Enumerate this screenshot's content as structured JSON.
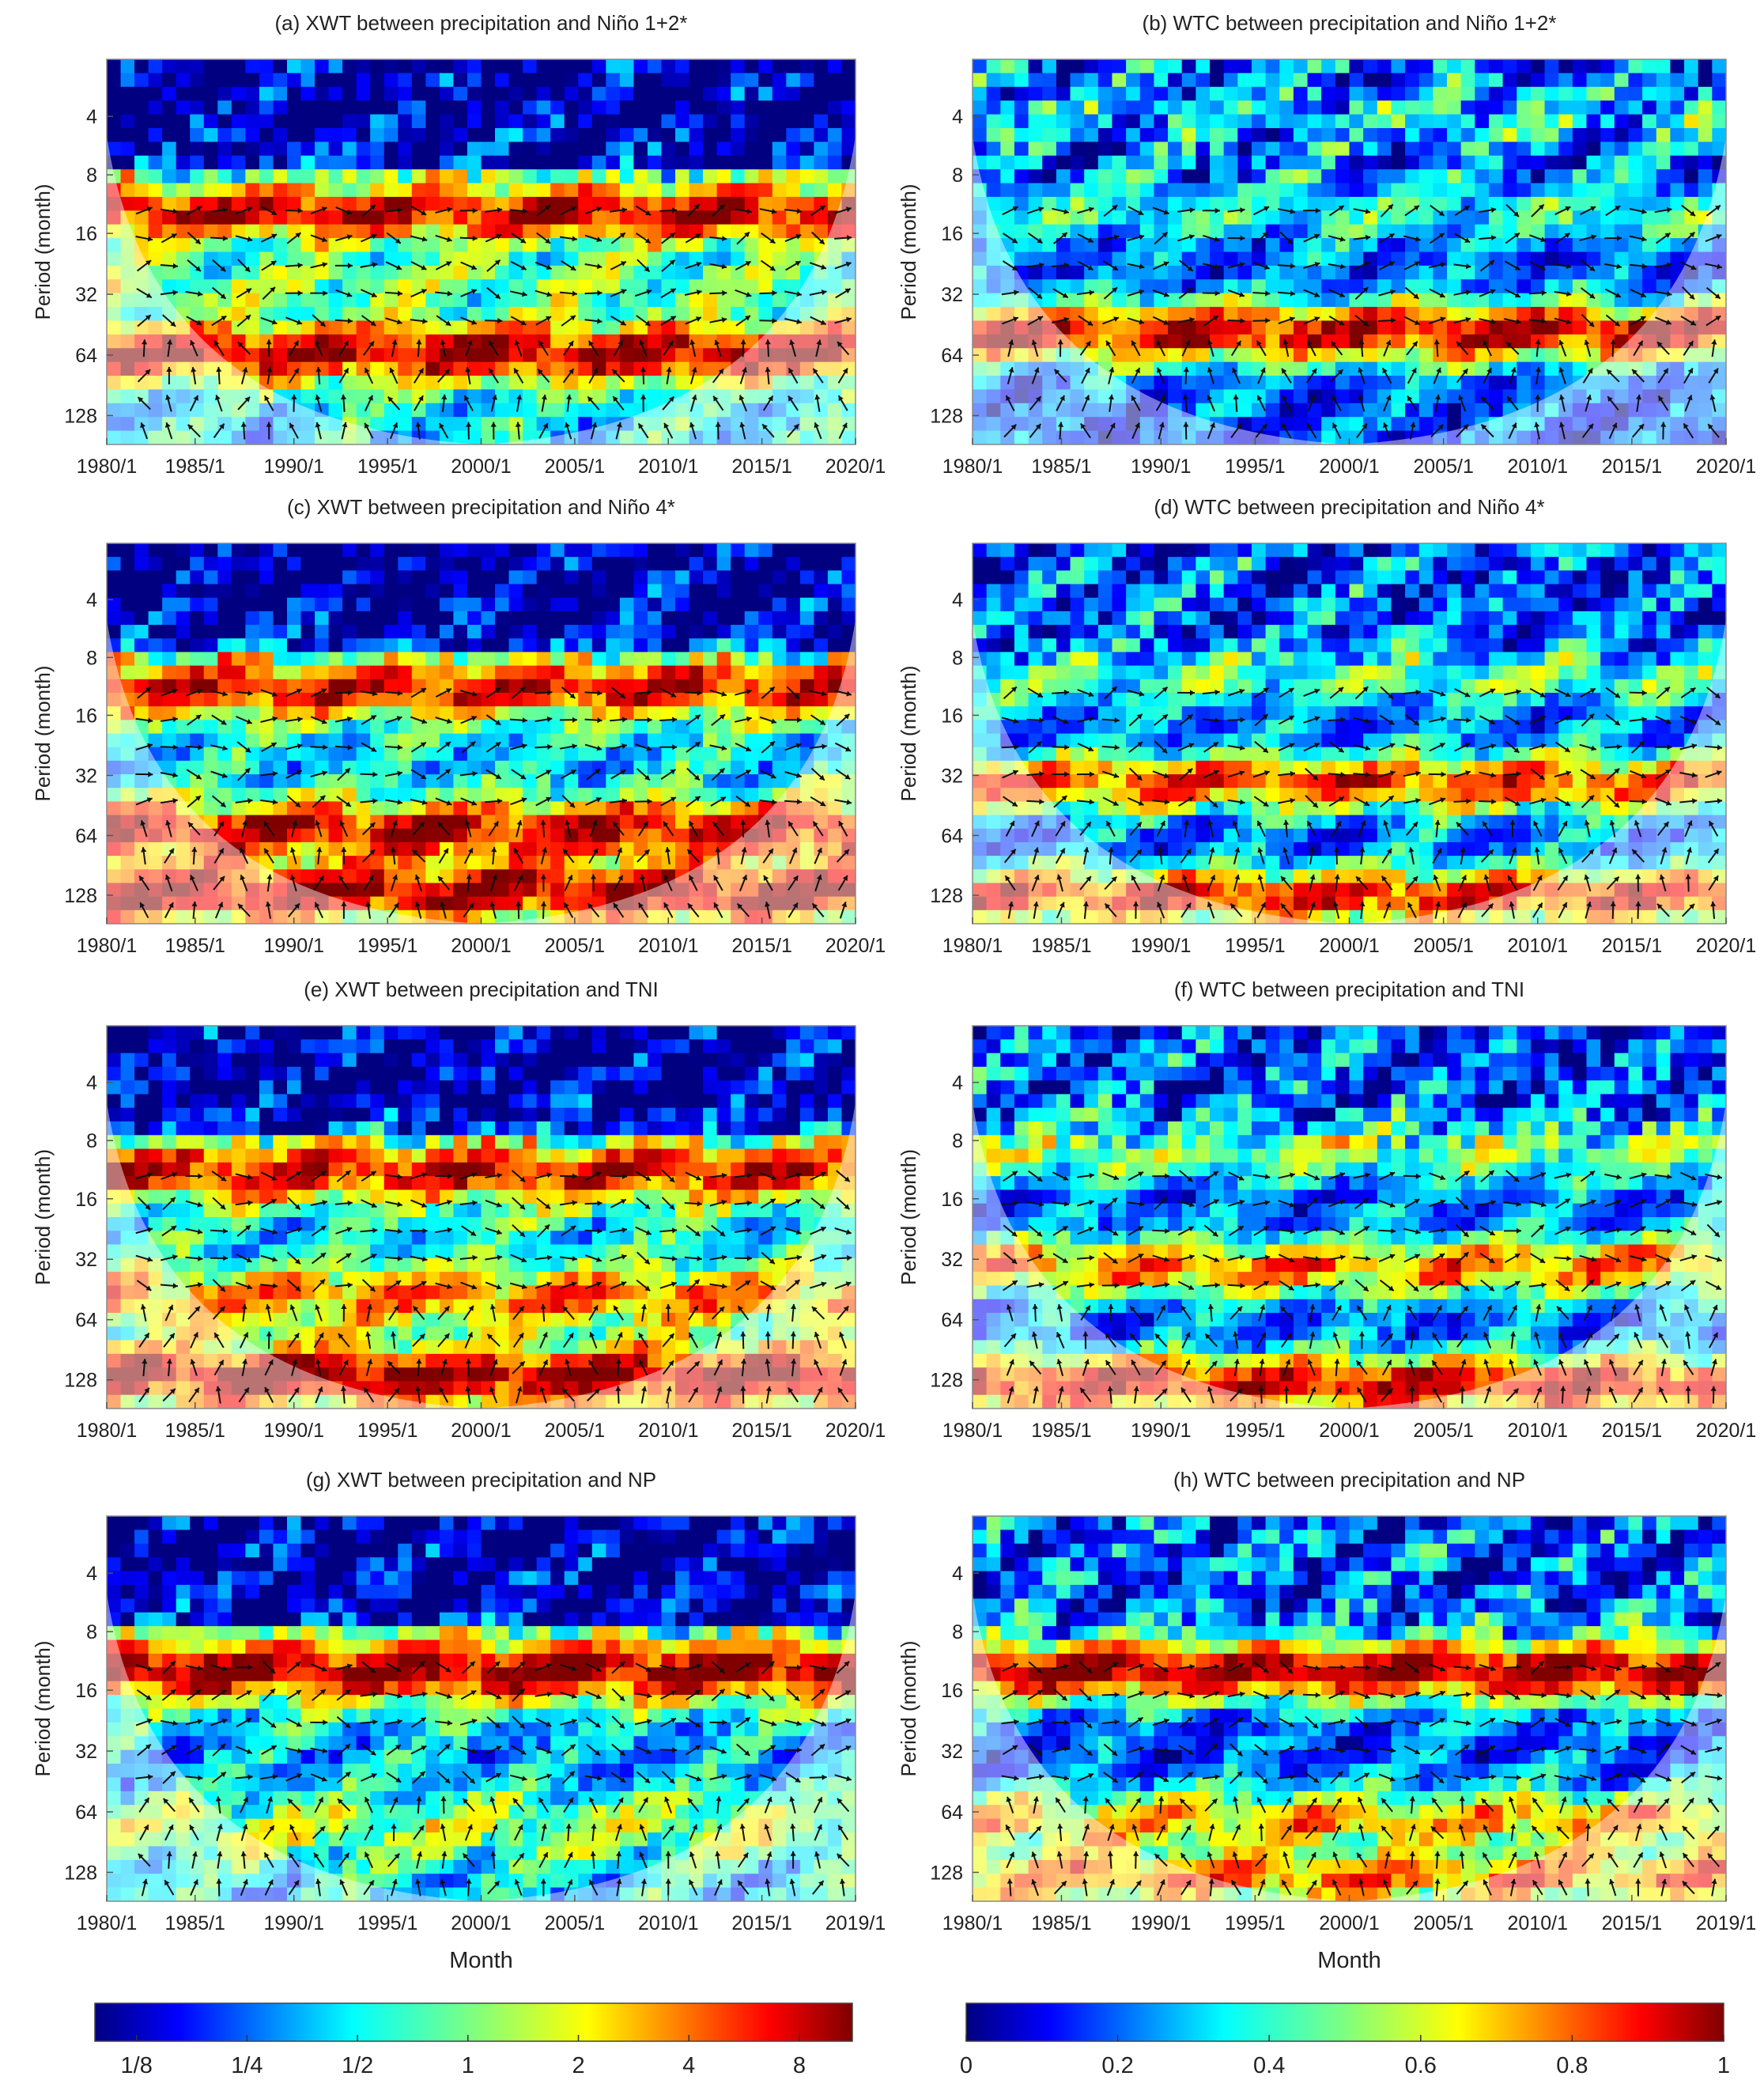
{
  "chart_data": {
    "type": "heatmap",
    "panels": [
      {
        "id": "a",
        "title": "(a) XWT between precipitation and Niño 1+2*",
        "ylabel": "Period (month)",
        "xlabel": "",
        "x_ticks": [
          "1980/1",
          "1985/1",
          "1990/1",
          "1995/1",
          "2000/1",
          "2005/1",
          "2010/1",
          "2015/1",
          "2020/1"
        ],
        "y_ticks": [
          "4",
          "8",
          "16",
          "32",
          "64",
          "128"
        ],
        "colorbar": "xwt",
        "bands": [
          {
            "period": 12,
            "value": 0.9
          },
          {
            "period": 56,
            "value": 0.95
          },
          {
            "period": 26,
            "value": 0.5
          }
        ]
      },
      {
        "id": "b",
        "title": "(b) WTC between precipitation and Niño 1+2*",
        "ylabel": "Period (month)",
        "xlabel": "",
        "x_ticks": [
          "1980/1",
          "1985/1",
          "1990/1",
          "1995/1",
          "2000/1",
          "2005/1",
          "2010/1",
          "2015/1",
          "2020/1"
        ],
        "y_ticks": [
          "4",
          "8",
          "16",
          "32",
          "64",
          "128"
        ],
        "colorbar": "wtc",
        "bands": [
          {
            "period": 12,
            "value": 0.4
          },
          {
            "period": 45,
            "value": 0.92
          },
          {
            "period": 4,
            "value": 0.35
          }
        ]
      },
      {
        "id": "c",
        "title": "(c) XWT between precipitation and Niño 4*",
        "ylabel": "Period (month)",
        "xlabel": "",
        "x_ticks": [
          "1980/1",
          "1985/1",
          "1990/1",
          "1995/1",
          "2000/1",
          "2005/1",
          "2010/1",
          "2015/1",
          "2020/1"
        ],
        "y_ticks": [
          "4",
          "8",
          "16",
          "32",
          "64",
          "128"
        ],
        "colorbar": "xwt",
        "bands": [
          {
            "period": 11,
            "value": 0.88
          },
          {
            "period": 55,
            "value": 0.92
          },
          {
            "period": 110,
            "value": 0.95
          }
        ]
      },
      {
        "id": "d",
        "title": "(d) WTC between precipitation and Niño 4*",
        "ylabel": "Period (month)",
        "xlabel": "",
        "x_ticks": [
          "1980/1",
          "1985/1",
          "1990/1",
          "1995/1",
          "2000/1",
          "2005/1",
          "2010/1",
          "2015/1",
          "2020/1"
        ],
        "y_ticks": [
          "4",
          "8",
          "16",
          "32",
          "64",
          "128"
        ],
        "colorbar": "wtc",
        "bands": [
          {
            "period": 10,
            "value": 0.45
          },
          {
            "period": 32,
            "value": 0.8
          },
          {
            "period": 115,
            "value": 0.85
          }
        ]
      },
      {
        "id": "e",
        "title": "(e) XWT between precipitation and TNI",
        "ylabel": "Period (month)",
        "xlabel": "",
        "x_ticks": [
          "1980/1",
          "1985/1",
          "1990/1",
          "1995/1",
          "2000/1",
          "2005/1",
          "2010/1",
          "2015/1",
          "2020/1"
        ],
        "y_ticks": [
          "4",
          "8",
          "16",
          "32",
          "64",
          "128"
        ],
        "colorbar": "xwt",
        "bands": [
          {
            "period": 11,
            "value": 0.88
          },
          {
            "period": 45,
            "value": 0.75
          },
          {
            "period": 110,
            "value": 0.97
          }
        ]
      },
      {
        "id": "f",
        "title": "(f) WTC between precipitation and TNI",
        "ylabel": "Period (month)",
        "xlabel": "",
        "x_ticks": [
          "1980/1",
          "1985/1",
          "1990/1",
          "1995/1",
          "2000/1",
          "2005/1",
          "2010/1",
          "2015/1",
          "2020/1"
        ],
        "y_ticks": [
          "4",
          "8",
          "16",
          "32",
          "64",
          "128"
        ],
        "colorbar": "wtc",
        "bands": [
          {
            "period": 9,
            "value": 0.5
          },
          {
            "period": 32,
            "value": 0.75
          },
          {
            "period": 120,
            "value": 0.9
          }
        ]
      },
      {
        "id": "g",
        "title": "(g) XWT between precipitation and NP",
        "ylabel": "Period (month)",
        "xlabel": "Month",
        "x_ticks": [
          "1980/1",
          "1985/1",
          "1990/1",
          "1995/1",
          "2000/1",
          "2005/1",
          "2010/1",
          "2015/1",
          "2019/1"
        ],
        "y_ticks": [
          "4",
          "8",
          "16",
          "32",
          "64",
          "128"
        ],
        "colorbar": "xwt",
        "bands": [
          {
            "period": 12,
            "value": 0.98
          },
          {
            "period": 32,
            "value": 0.3
          },
          {
            "period": 70,
            "value": 0.55
          }
        ]
      },
      {
        "id": "h",
        "title": "(h) WTC between precipitation and NP",
        "ylabel": "Period (month)",
        "xlabel": "Month",
        "x_ticks": [
          "1980/1",
          "1985/1",
          "1990/1",
          "1995/1",
          "2000/1",
          "2005/1",
          "2010/1",
          "2015/1",
          "2019/1"
        ],
        "y_ticks": [
          "4",
          "8",
          "16",
          "32",
          "64",
          "128"
        ],
        "colorbar": "wtc",
        "bands": [
          {
            "period": 12,
            "value": 0.97
          },
          {
            "period": 64,
            "value": 0.7
          },
          {
            "period": 120,
            "value": 0.75
          }
        ]
      }
    ],
    "colorbars": {
      "xwt": {
        "ticks": [
          "1/8",
          "1/4",
          "1/2",
          "1",
          "2",
          "4",
          "8"
        ],
        "range": [
          0.0884,
          11.3
        ],
        "scale": "log2"
      },
      "wtc": {
        "ticks": [
          "0",
          "0.2",
          "0.4",
          "0.6",
          "0.8",
          "1"
        ],
        "range": [
          0,
          1
        ],
        "scale": "linear"
      }
    }
  }
}
